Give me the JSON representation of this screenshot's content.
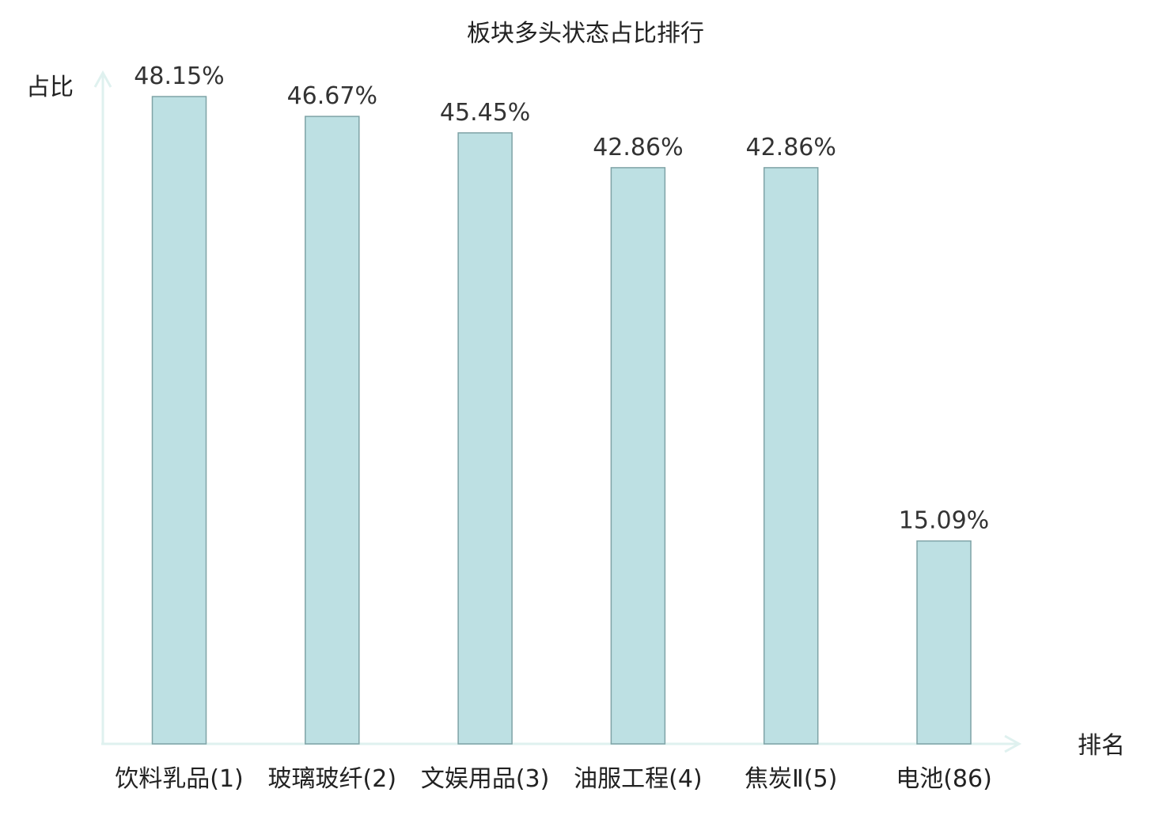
{
  "chart_data": {
    "type": "bar",
    "title": "板块多头状态占比排行",
    "xlabel": "排名",
    "ylabel": "占比",
    "categories": [
      "饮料乳品(1)",
      "玻璃玻纤(2)",
      "文娱用品(3)",
      "油服工程(4)",
      "焦炭Ⅱ(5)",
      "电池(86)"
    ],
    "values": [
      48.15,
      46.67,
      45.45,
      42.86,
      42.86,
      15.09
    ],
    "value_labels": [
      "48.15%",
      "46.67%",
      "45.45%",
      "42.86%",
      "42.86%",
      "15.09%"
    ],
    "highlight_index": 5,
    "ylim": [
      0,
      48.15
    ],
    "grid": false,
    "colors": {
      "bar_fill": "#bde0e3",
      "bar_stroke": "#7fa3a6",
      "axis": "#dff1ef",
      "text": "#222222",
      "value_text": "#333333",
      "highlight_text": "#e02020"
    }
  }
}
